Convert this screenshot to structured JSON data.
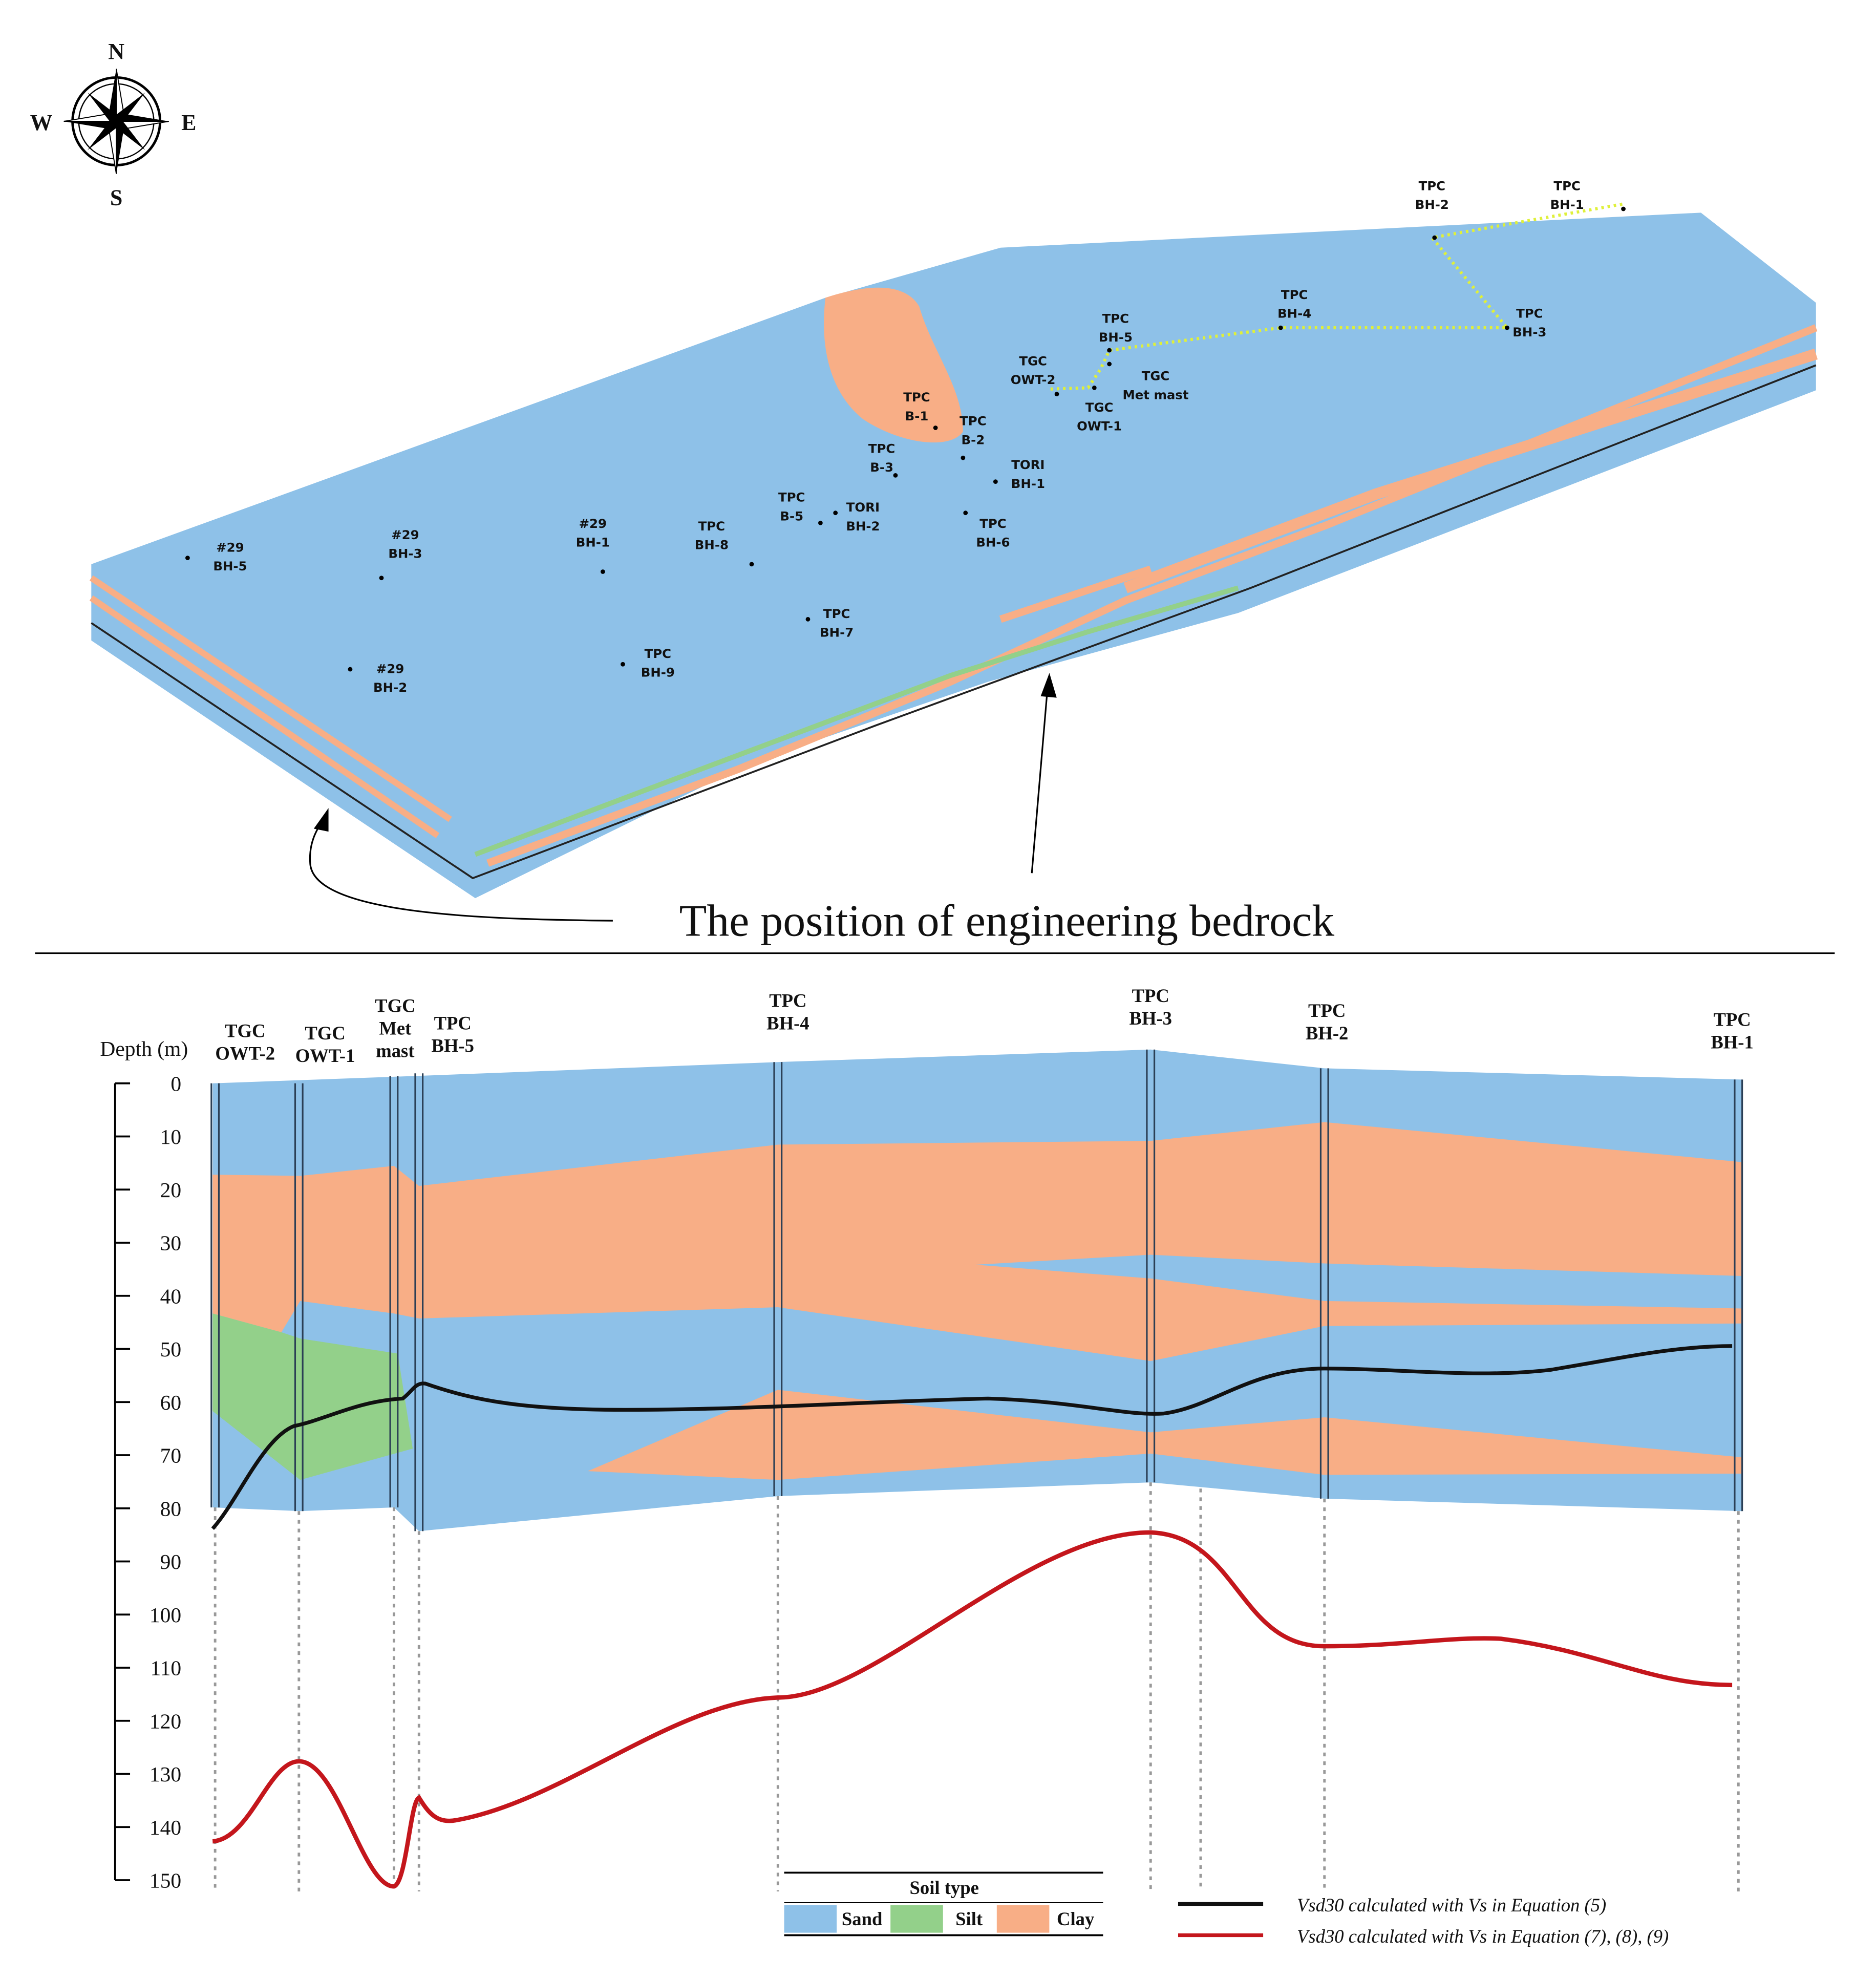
{
  "map": {
    "compass": {
      "n": "N",
      "e": "E",
      "s": "S",
      "w": "W"
    },
    "boreholes": [
      [
        "#29",
        "BH-5"
      ],
      [
        "#29",
        "BH-3"
      ],
      [
        "#29",
        "BH-2"
      ],
      [
        "#29",
        "BH-1"
      ],
      [
        "TPC",
        "BH-8"
      ],
      [
        "TPC",
        "BH-9"
      ],
      [
        "TPC",
        "BH-7"
      ],
      [
        "TPC",
        "B-5"
      ],
      [
        "TORI",
        "BH-2"
      ],
      [
        "TPC",
        "B-3"
      ],
      [
        "TPC",
        "B-1"
      ],
      [
        "TPC",
        "B-2"
      ],
      [
        "TORI",
        "BH-1"
      ],
      [
        "TPC",
        "BH-6"
      ],
      [
        "TGC",
        "OWT-2"
      ],
      [
        "TGC",
        "OWT-1"
      ],
      [
        "TGC",
        "Met mast"
      ],
      [
        "TPC",
        "BH-5"
      ],
      [
        "TPC",
        "BH-4"
      ],
      [
        "TPC",
        "BH-3"
      ],
      [
        "TPC",
        "BH-2"
      ],
      [
        "TPC",
        "BH-1"
      ]
    ],
    "annotation": "The position of engineering bedrock"
  },
  "section": {
    "axis_label": "Depth (m)",
    "ylim": [
      0,
      150
    ],
    "yticks": [
      0,
      10,
      20,
      30,
      40,
      50,
      60,
      70,
      80,
      90,
      100,
      110,
      120,
      130,
      140,
      150
    ],
    "boreholes": [
      [
        "TGC",
        "OWT-2"
      ],
      [
        "TGC",
        "OWT-1"
      ],
      [
        "TGC",
        "Met",
        "mast"
      ],
      [
        "TPC",
        "BH-5"
      ],
      [
        "TPC",
        "BH-4"
      ],
      [
        "TPC",
        "BH-3"
      ],
      [
        "TPC",
        "BH-2"
      ],
      [
        "TPC",
        "BH-1"
      ]
    ],
    "legend": {
      "title": "Soil type",
      "items": [
        "Sand",
        "Silt",
        "Clay"
      ]
    },
    "curve_legend": [
      "Vsd30 calculated with Vs in Equation (5)",
      "Vsd30 calculated with Vs in Equation (7), (8), (9)"
    ]
  }
}
